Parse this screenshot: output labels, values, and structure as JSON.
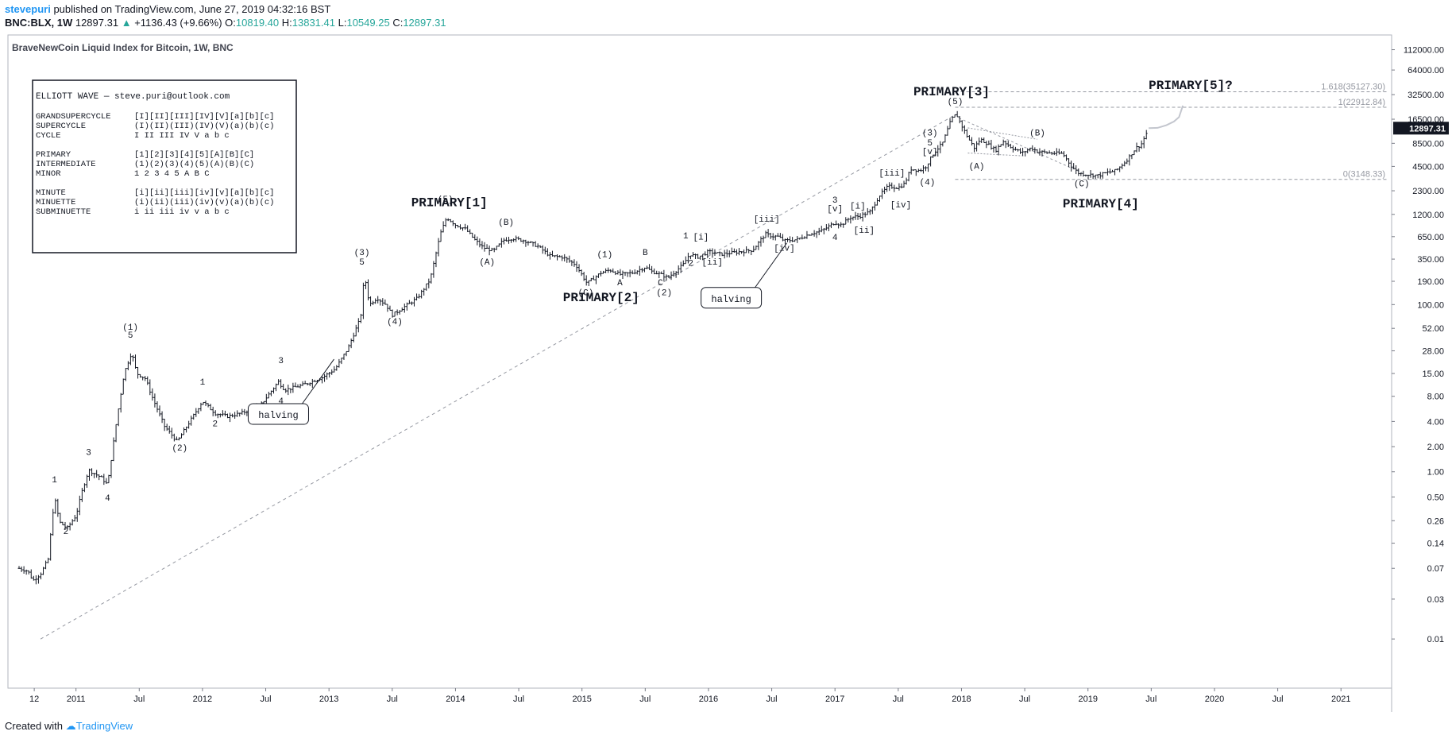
{
  "header": {
    "author": "stevepuri",
    "published_text": "published on TradingView.com, June 27, 2019 04:32:16 BST",
    "symbol": "BNC:BLX, 1W",
    "last": "12897.31",
    "change_arrow": "▲",
    "change": "+1136.43 (+9.66%)",
    "o_label": "O:",
    "o_value": "10819.40",
    "h_label": "H:",
    "h_value": "13831.41",
    "l_label": "L:",
    "l_value": "10549.25",
    "c_label": "C:",
    "c_value": "12897.31"
  },
  "footer": {
    "created_with": "Created with",
    "brand": "TradingView"
  },
  "chart_data": {
    "type": "candlestick",
    "title": "BraveNewCoin Liquid Index for Bitcoin, 1W, BNC",
    "y_scale": "log",
    "ylim": [
      0.004,
      135000
    ],
    "y_ticks": [
      "112000.00",
      "64000.00",
      "32500.00",
      "16500.00",
      "8500.00",
      "4500.00",
      "2300.00",
      "1200.00",
      "650.00",
      "350.00",
      "190.00",
      "100.00",
      "52.00",
      "28.00",
      "15.00",
      "8.00",
      "4.00",
      "2.00",
      "1.00",
      "0.50",
      "0.26",
      "0.14",
      "0.07",
      "0.03",
      "0.01"
    ],
    "x_range": [
      2010.55,
      2021.3
    ],
    "x_ticks": [
      {
        "label": "12",
        "t": 2010.67
      },
      {
        "label": "2011",
        "t": 2011.0
      },
      {
        "label": "Jul",
        "t": 2011.5
      },
      {
        "label": "2012",
        "t": 2012.0
      },
      {
        "label": "Jul",
        "t": 2012.5
      },
      {
        "label": "2013",
        "t": 2013.0
      },
      {
        "label": "Jul",
        "t": 2013.5
      },
      {
        "label": "2014",
        "t": 2014.0
      },
      {
        "label": "Jul",
        "t": 2014.5
      },
      {
        "label": "2015",
        "t": 2015.0
      },
      {
        "label": "Jul",
        "t": 2015.5
      },
      {
        "label": "2016",
        "t": 2016.0
      },
      {
        "label": "Jul",
        "t": 2016.5
      },
      {
        "label": "2017",
        "t": 2017.0
      },
      {
        "label": "Jul",
        "t": 2017.5
      },
      {
        "label": "2018",
        "t": 2018.0
      },
      {
        "label": "Jul",
        "t": 2018.5
      },
      {
        "label": "2019",
        "t": 2019.0
      },
      {
        "label": "Jul",
        "t": 2019.5
      },
      {
        "label": "2020",
        "t": 2020.0
      },
      {
        "label": "Jul",
        "t": 2020.5
      },
      {
        "label": "2021",
        "t": 2021.0
      }
    ],
    "last_price_label": "12897.31",
    "price_path": [
      [
        2010.55,
        0.07
      ],
      [
        2010.62,
        0.065
      ],
      [
        2010.66,
        0.05
      ],
      [
        2010.72,
        0.06
      ],
      [
        2010.78,
        0.09
      ],
      [
        2010.83,
        0.5
      ],
      [
        2010.87,
        0.25
      ],
      [
        2010.93,
        0.21
      ],
      [
        2011.0,
        0.3
      ],
      [
        2011.05,
        0.6
      ],
      [
        2011.1,
        1.05
      ],
      [
        2011.2,
        0.85
      ],
      [
        2011.25,
        0.7
      ],
      [
        2011.32,
        4
      ],
      [
        2011.38,
        15
      ],
      [
        2011.44,
        27
      ],
      [
        2011.48,
        15
      ],
      [
        2011.55,
        13
      ],
      [
        2011.6,
        8
      ],
      [
        2011.7,
        3.5
      ],
      [
        2011.8,
        2.3
      ],
      [
        2011.9,
        4
      ],
      [
        2012.0,
        7
      ],
      [
        2012.1,
        5
      ],
      [
        2012.2,
        4.6
      ],
      [
        2012.3,
        5
      ],
      [
        2012.45,
        6
      ],
      [
        2012.6,
        12
      ],
      [
        2012.65,
        9.5
      ],
      [
        2012.8,
        11
      ],
      [
        2012.95,
        13.5
      ],
      [
        2013.05,
        17
      ],
      [
        2013.15,
        30
      ],
      [
        2013.25,
        70
      ],
      [
        2013.28,
        230
      ],
      [
        2013.32,
        100
      ],
      [
        2013.38,
        120
      ],
      [
        2013.45,
        100
      ],
      [
        2013.5,
        75
      ],
      [
        2013.6,
        95
      ],
      [
        2013.7,
        120
      ],
      [
        2013.8,
        200
      ],
      [
        2013.88,
        700
      ],
      [
        2013.93,
        1100
      ],
      [
        2014.0,
        900
      ],
      [
        2014.08,
        800
      ],
      [
        2014.15,
        600
      ],
      [
        2014.22,
        480
      ],
      [
        2014.3,
        440
      ],
      [
        2014.38,
        590
      ],
      [
        2014.45,
        620
      ],
      [
        2014.55,
        580
      ],
      [
        2014.65,
        500
      ],
      [
        2014.75,
        380
      ],
      [
        2014.85,
        370
      ],
      [
        2014.95,
        300
      ],
      [
        2015.04,
        180
      ],
      [
        2015.15,
        240
      ],
      [
        2015.22,
        260
      ],
      [
        2015.3,
        230
      ],
      [
        2015.4,
        240
      ],
      [
        2015.5,
        280
      ],
      [
        2015.55,
        250
      ],
      [
        2015.62,
        230
      ],
      [
        2015.68,
        210
      ],
      [
        2015.8,
        300
      ],
      [
        2015.85,
        400
      ],
      [
        2015.92,
        370
      ],
      [
        2016.0,
        430
      ],
      [
        2016.1,
        400
      ],
      [
        2016.2,
        420
      ],
      [
        2016.35,
        450
      ],
      [
        2016.45,
        700
      ],
      [
        2016.5,
        660
      ],
      [
        2016.55,
        650
      ],
      [
        2016.6,
        580
      ],
      [
        2016.7,
        600
      ],
      [
        2016.8,
        700
      ],
      [
        2016.9,
        770
      ],
      [
        2017.0,
        960
      ],
      [
        2017.05,
        900
      ],
      [
        2017.12,
        1100
      ],
      [
        2017.2,
        1150
      ],
      [
        2017.28,
        1300
      ],
      [
        2017.35,
        2000
      ],
      [
        2017.42,
        2600
      ],
      [
        2017.5,
        2500
      ],
      [
        2017.55,
        2800
      ],
      [
        2017.6,
        4200
      ],
      [
        2017.67,
        4000
      ],
      [
        2017.72,
        4500
      ],
      [
        2017.78,
        6500
      ],
      [
        2017.85,
        8500
      ],
      [
        2017.92,
        16500
      ],
      [
        2017.96,
        19000
      ],
      [
        2018.0,
        14000
      ],
      [
        2018.05,
        10000
      ],
      [
        2018.1,
        7500
      ],
      [
        2018.15,
        9500
      ],
      [
        2018.2,
        8500
      ],
      [
        2018.27,
        7000
      ],
      [
        2018.33,
        9000
      ],
      [
        2018.4,
        7500
      ],
      [
        2018.48,
        6500
      ],
      [
        2018.55,
        7500
      ],
      [
        2018.6,
        6800
      ],
      [
        2018.7,
        6500
      ],
      [
        2018.8,
        6400
      ],
      [
        2018.87,
        4500
      ],
      [
        2018.93,
        3700
      ],
      [
        2019.0,
        3600
      ],
      [
        2019.08,
        3500
      ],
      [
        2019.15,
        3800
      ],
      [
        2019.22,
        4000
      ],
      [
        2019.3,
        5200
      ],
      [
        2019.38,
        7500
      ],
      [
        2019.42,
        8200
      ],
      [
        2019.46,
        11000
      ],
      [
        2019.48,
        12897.31
      ]
    ],
    "projection_path": [
      [
        2019.48,
        12897.31
      ],
      [
        2019.55,
        13000
      ],
      [
        2019.62,
        14000
      ],
      [
        2019.68,
        15500
      ],
      [
        2019.72,
        17500
      ],
      [
        2019.75,
        24000
      ]
    ],
    "fib_levels": [
      {
        "label": "1.618(35127.30)",
        "value": 35127.3
      },
      {
        "label": "1(22912.84)",
        "value": 22912.84
      },
      {
        "label": "0(3148.33)",
        "value": 3148.33
      }
    ],
    "primary_labels": [
      {
        "text": "PRIMARY[1]",
        "t": 2013.65,
        "v": 1500
      },
      {
        "text": "PRIMARY[2]",
        "t": 2014.85,
        "v": 110
      },
      {
        "text": "PRIMARY[3]",
        "t": 2017.62,
        "v": 32000
      },
      {
        "text": "PRIMARY[4]",
        "t": 2018.8,
        "v": 1450
      },
      {
        "text": "PRIMARY[5]?",
        "t": 2019.48,
        "v": 38000
      }
    ],
    "wave_labels": [
      {
        "text": "1",
        "t": 2010.83,
        "v": 0.75
      },
      {
        "text": "2",
        "t": 2010.92,
        "v": 0.18
      },
      {
        "text": "3",
        "t": 2011.1,
        "v": 1.6
      },
      {
        "text": "4",
        "t": 2011.25,
        "v": 0.45
      },
      {
        "text": "(1)",
        "t": 2011.43,
        "v": 50
      },
      {
        "text": "5",
        "t": 2011.43,
        "v": 40
      },
      {
        "text": "(2)",
        "t": 2011.82,
        "v": 1.8
      },
      {
        "text": "1",
        "t": 2012.0,
        "v": 11
      },
      {
        "text": "2",
        "t": 2012.1,
        "v": 3.5
      },
      {
        "text": "3",
        "t": 2012.62,
        "v": 20
      },
      {
        "text": "4",
        "t": 2012.62,
        "v": 6.5
      },
      {
        "text": "(3)",
        "t": 2013.26,
        "v": 390
      },
      {
        "text": "5",
        "t": 2013.26,
        "v": 300
      },
      {
        "text": "(4)",
        "t": 2013.52,
        "v": 58
      },
      {
        "text": "(5)",
        "t": 2013.92,
        "v": 1700
      },
      {
        "text": "(A)",
        "t": 2014.25,
        "v": 300
      },
      {
        "text": "(B)",
        "t": 2014.4,
        "v": 900
      },
      {
        "text": "(C)",
        "t": 2015.03,
        "v": 130
      },
      {
        "text": "(1)",
        "t": 2015.18,
        "v": 370
      },
      {
        "text": "A",
        "t": 2015.3,
        "v": 170
      },
      {
        "text": "B",
        "t": 2015.5,
        "v": 390
      },
      {
        "text": "C",
        "t": 2015.62,
        "v": 170
      },
      {
        "text": "(2)",
        "t": 2015.65,
        "v": 130
      },
      {
        "text": "1",
        "t": 2015.82,
        "v": 620
      },
      {
        "text": "[i]",
        "t": 2015.94,
        "v": 600
      },
      {
        "text": "2",
        "t": 2015.86,
        "v": 290
      },
      {
        "text": "[ii]",
        "t": 2016.03,
        "v": 300
      },
      {
        "text": "[iii]",
        "t": 2016.46,
        "v": 980
      },
      {
        "text": "[iv]",
        "t": 2016.6,
        "v": 440
      },
      {
        "text": "3",
        "t": 2017.0,
        "v": 1650
      },
      {
        "text": "[v]",
        "t": 2017.0,
        "v": 1300
      },
      {
        "text": "4",
        "t": 2017.0,
        "v": 590
      },
      {
        "text": "[i]",
        "t": 2017.18,
        "v": 1400
      },
      {
        "text": "[ii]",
        "t": 2017.23,
        "v": 720
      },
      {
        "text": "[iii]",
        "t": 2017.45,
        "v": 3500
      },
      {
        "text": "[iv]",
        "t": 2017.52,
        "v": 1450
      },
      {
        "text": "(3)",
        "t": 2017.75,
        "v": 10500
      },
      {
        "text": "5",
        "t": 2017.75,
        "v": 8000
      },
      {
        "text": "[v]",
        "t": 2017.75,
        "v": 6300
      },
      {
        "text": "(4)",
        "t": 2017.73,
        "v": 2700
      },
      {
        "text": "(5)",
        "t": 2017.95,
        "v": 25000
      },
      {
        "text": "(A)",
        "t": 2018.12,
        "v": 4200
      },
      {
        "text": "(B)",
        "t": 2018.6,
        "v": 10500
      },
      {
        "text": "(C)",
        "t": 2018.95,
        "v": 2600
      }
    ],
    "callouts": [
      {
        "text": "halving",
        "t": 2012.6,
        "v": 4.8
      },
      {
        "text": "halving",
        "t": 2016.18,
        "v": 118
      }
    ],
    "legend_box": {
      "title": "ELLIOTT WAVE — steve.puri@outlook.com",
      "rows": [
        [
          "GRANDSUPERCYCLE",
          "[I][II][III][IV][V][a][b][c]"
        ],
        [
          "SUPERCYCLE",
          "(I)(II)(III)(IV)(V)(a)(b)(c)"
        ],
        [
          "CYCLE",
          " I  II  III  IV  V  a  b  c"
        ],
        [
          "",
          ""
        ],
        [
          "PRIMARY",
          "[1][2][3][4][5][A][B][C]"
        ],
        [
          "INTERMEDIATE",
          "(1)(2)(3)(4)(5)(A)(B)(C)"
        ],
        [
          "MINOR",
          "  1  2  3  4  5  A  B  C"
        ],
        [
          "",
          ""
        ],
        [
          "MINUTE",
          "[i][ii][iii][iv][v][a][b][c]"
        ],
        [
          "MINUETTE",
          "(i)(ii)(iii)(iv)(v)(a)(b)(c)"
        ],
        [
          "SUBMINUETTE",
          " i  ii  iii  iv  v  a  b  c"
        ]
      ]
    }
  }
}
